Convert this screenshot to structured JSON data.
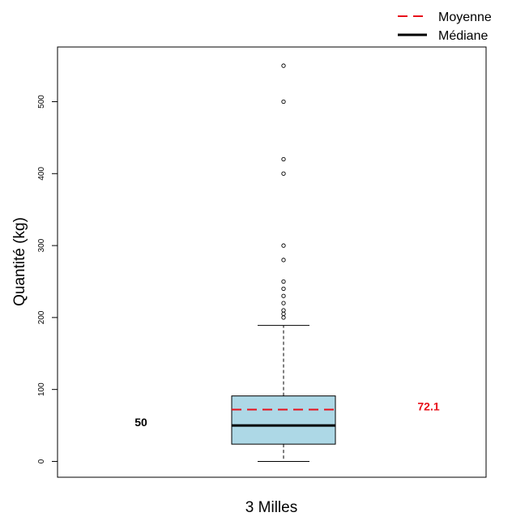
{
  "chart_data": {
    "type": "box",
    "ylabel": "Quantité (kg)",
    "xlabel": "3 Milles",
    "ylim": [
      -22,
      576
    ],
    "yticks": [
      0,
      100,
      200,
      300,
      400,
      500
    ],
    "ytick_labels": [
      "0",
      "100",
      "200",
      "300",
      "400",
      "500"
    ],
    "box": {
      "whisker_low": 0,
      "q1": 24,
      "median": 50,
      "q3": 91,
      "whisker_high": 189,
      "mean": 72.1,
      "outliers": [
        200,
        205,
        210,
        220,
        230,
        240,
        250,
        280,
        300,
        400,
        420,
        500,
        550
      ]
    },
    "legend": [
      {
        "label": "Moyenne",
        "color": "#e8101a",
        "style": "dashed"
      },
      {
        "label": "Médiane",
        "color": "#000000",
        "style": "solid"
      }
    ],
    "annotations": {
      "median_label": "50",
      "mean_label": "72.1"
    },
    "colors": {
      "box_fill": "#add8e6",
      "mean_line": "#e8101a",
      "median_line": "#000000"
    },
    "grid": false,
    "legend_position": "top-right"
  }
}
